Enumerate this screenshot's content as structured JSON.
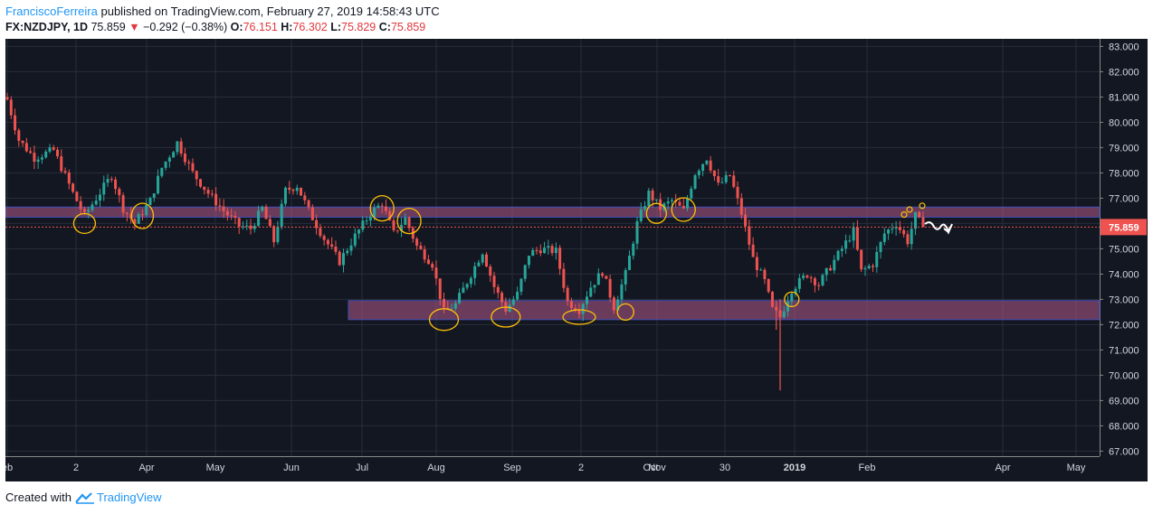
{
  "header": {
    "author": "FranciscoFerreira",
    "published": "published on TradingView.com, February 27, 2019 14:58:43 UTC"
  },
  "symbol": {
    "name": "FX:NZDJPY, 1D",
    "last": "75.859",
    "change": "−0.292 (−0.38%)",
    "open_label": "O:",
    "open": "76.151",
    "high_label": "H:",
    "high": "76.302",
    "low_label": "L:",
    "low": "75.829",
    "close_label": "C:",
    "close": "75.859"
  },
  "colors": {
    "background": "#131722",
    "up": "#26a69a",
    "down": "#ef5350",
    "zone_fill": "#b35a8a",
    "zone_border": "#3f51b5",
    "marker": "#ffc107",
    "price_tag": "#ef5350"
  },
  "footer": {
    "created": "Created with",
    "brand": "TradingView"
  },
  "chart_data": {
    "type": "candlestick",
    "price_axis": {
      "ticks": [
        "83.000",
        "82.000",
        "81.000",
        "80.000",
        "79.000",
        "78.000",
        "77.000",
        "76.000",
        "75.000",
        "74.000",
        "73.000",
        "72.000",
        "71.000",
        "70.000",
        "69.000",
        "68.000",
        "67.000"
      ],
      "ylim": [
        66.8,
        83.3
      ],
      "last_price": "75.859"
    },
    "time_axis": {
      "labels": [
        "eb",
        "2",
        "Apr",
        "May",
        "Jun",
        "Jul",
        "Aug",
        "Sep",
        "2",
        "Oct",
        "Nov",
        "30",
        "2019",
        "Feb",
        "Apr",
        "May"
      ],
      "bold_label": "2019"
    },
    "zones": [
      {
        "from": 76.25,
        "to": 76.65
      },
      {
        "from": 72.2,
        "to": 72.95
      }
    ],
    "price_path": [
      {
        "t": 0,
        "v": 80.9
      },
      {
        "t": 3,
        "v": 79.3
      },
      {
        "t": 7,
        "v": 78.6
      },
      {
        "t": 12,
        "v": 78.9
      },
      {
        "t": 17,
        "v": 77.2
      },
      {
        "t": 20,
        "v": 76.3
      },
      {
        "t": 23,
        "v": 77.0
      },
      {
        "t": 27,
        "v": 77.9
      },
      {
        "t": 30,
        "v": 76.6
      },
      {
        "t": 33,
        "v": 76.0
      },
      {
        "t": 37,
        "v": 76.9
      },
      {
        "t": 40,
        "v": 78.2
      },
      {
        "t": 44,
        "v": 79.2
      },
      {
        "t": 48,
        "v": 78.0
      },
      {
        "t": 52,
        "v": 77.2
      },
      {
        "t": 56,
        "v": 76.5
      },
      {
        "t": 60,
        "v": 75.9
      },
      {
        "t": 63,
        "v": 75.8
      },
      {
        "t": 66,
        "v": 76.6
      },
      {
        "t": 69,
        "v": 75.3
      },
      {
        "t": 72,
        "v": 77.3
      },
      {
        "t": 75,
        "v": 77.5
      },
      {
        "t": 78,
        "v": 76.5
      },
      {
        "t": 82,
        "v": 75.4
      },
      {
        "t": 86,
        "v": 74.5
      },
      {
        "t": 90,
        "v": 75.5
      },
      {
        "t": 94,
        "v": 76.4
      },
      {
        "t": 97,
        "v": 76.8
      },
      {
        "t": 100,
        "v": 75.6
      },
      {
        "t": 103,
        "v": 76.2
      },
      {
        "t": 106,
        "v": 75.1
      },
      {
        "t": 110,
        "v": 74.4
      },
      {
        "t": 113,
        "v": 72.5
      },
      {
        "t": 116,
        "v": 72.8
      },
      {
        "t": 120,
        "v": 74.0
      },
      {
        "t": 123,
        "v": 74.9
      },
      {
        "t": 126,
        "v": 73.5
      },
      {
        "t": 129,
        "v": 72.6
      },
      {
        "t": 132,
        "v": 73.2
      },
      {
        "t": 135,
        "v": 74.8
      },
      {
        "t": 138,
        "v": 75.0
      },
      {
        "t": 142,
        "v": 74.9
      },
      {
        "t": 145,
        "v": 72.9
      },
      {
        "t": 148,
        "v": 72.6
      },
      {
        "t": 151,
        "v": 73.5
      },
      {
        "t": 154,
        "v": 74.1
      },
      {
        "t": 157,
        "v": 72.7
      },
      {
        "t": 160,
        "v": 74.0
      },
      {
        "t": 163,
        "v": 76.0
      },
      {
        "t": 166,
        "v": 77.2
      },
      {
        "t": 169,
        "v": 76.6
      },
      {
        "t": 172,
        "v": 76.9
      },
      {
        "t": 175,
        "v": 76.5
      },
      {
        "t": 178,
        "v": 78.0
      },
      {
        "t": 181,
        "v": 78.6
      },
      {
        "t": 184,
        "v": 77.5
      },
      {
        "t": 187,
        "v": 77.9
      },
      {
        "t": 190,
        "v": 76.4
      },
      {
        "t": 193,
        "v": 74.6
      },
      {
        "t": 196,
        "v": 73.7
      },
      {
        "t": 198,
        "v": 72.6
      },
      {
        "t": 200,
        "v": 72.3
      },
      {
        "t": 203,
        "v": 73.4
      },
      {
        "t": 207,
        "v": 74.0
      },
      {
        "t": 210,
        "v": 73.6
      },
      {
        "t": 213,
        "v": 74.3
      },
      {
        "t": 216,
        "v": 75.0
      },
      {
        "t": 219,
        "v": 75.7
      },
      {
        "t": 221,
        "v": 74.1
      },
      {
        "t": 224,
        "v": 74.4
      },
      {
        "t": 227,
        "v": 75.6
      },
      {
        "t": 230,
        "v": 76.0
      },
      {
        "t": 233,
        "v": 75.3
      },
      {
        "t": 235,
        "v": 76.3
      },
      {
        "t": 237,
        "v": 75.86
      }
    ],
    "spikes": [
      {
        "t": 200,
        "low": 69.4,
        "high": 73.0
      },
      {
        "t": 199,
        "low": 71.8,
        "high": 72.9
      }
    ],
    "markers": [
      {
        "t": 20,
        "v": 76.0
      },
      {
        "t": 35,
        "v": 76.3
      },
      {
        "t": 97,
        "v": 76.6
      },
      {
        "t": 104,
        "v": 76.1
      },
      {
        "t": 113,
        "v": 72.2
      },
      {
        "t": 129,
        "v": 72.3
      },
      {
        "t": 148,
        "v": 72.3
      },
      {
        "t": 160,
        "v": 72.5
      },
      {
        "t": 168,
        "v": 76.4
      },
      {
        "t": 175,
        "v": 76.55
      },
      {
        "t": 203,
        "v": 73.0
      }
    ]
  }
}
